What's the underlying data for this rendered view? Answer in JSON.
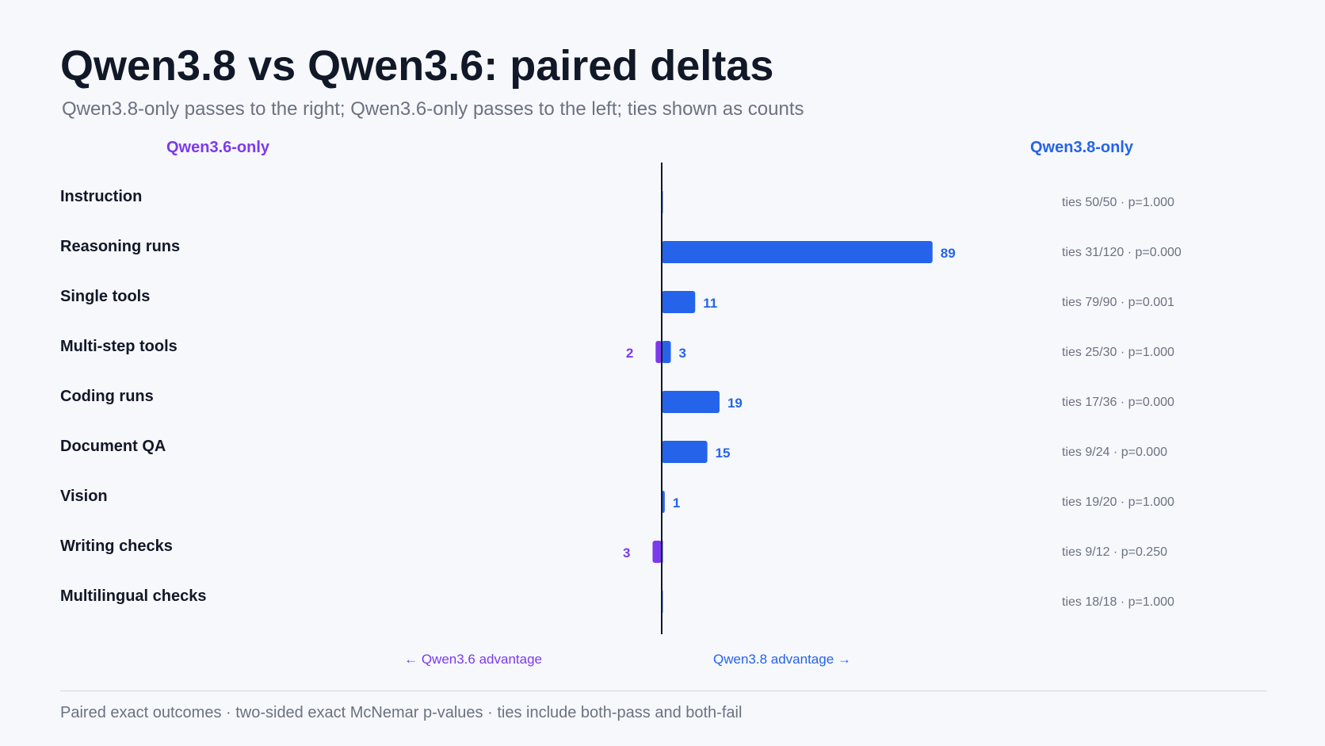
{
  "title": "Qwen3.8 vs Qwen3.6: paired deltas",
  "subtitle": "Qwen3.8-only passes to the right; Qwen3.6-only passes to the left; ties shown as counts",
  "left_header": "Qwen3.6-only",
  "right_header": "Qwen3.8-only",
  "left_axis_label": "← Qwen3.6 advantage",
  "right_axis_label": "Qwen3.8 advantage →",
  "footnote": "Paired exact outcomes · two-sided exact McNemar p-values · ties include both-pass and both-fail",
  "colors": {
    "qwen38": "#2563eb",
    "qwen36": "#7c3aed",
    "text": "#111827",
    "muted": "#6b7280"
  },
  "chart_data": {
    "type": "bar",
    "orientation": "horizontal-diverging",
    "categories": [
      "Instruction",
      "Reasoning runs",
      "Single tools",
      "Multi-step tools",
      "Coding runs",
      "Document QA",
      "Vision",
      "Writing checks",
      "Multilingual checks"
    ],
    "series": [
      {
        "name": "Qwen3.8-only",
        "direction": "right",
        "values": [
          0,
          89,
          11,
          3,
          19,
          15,
          1,
          0,
          0
        ]
      },
      {
        "name": "Qwen3.6-only",
        "direction": "left",
        "values": [
          0,
          0,
          0,
          2,
          0,
          0,
          0,
          3,
          0
        ]
      }
    ],
    "annotations": [
      "ties 50/50 · p=1.000",
      "ties 31/120 · p=0.000",
      "ties 79/90 · p=0.001",
      "ties 25/30 · p=1.000",
      "ties 17/36 · p=0.000",
      "ties 9/24 · p=0.000",
      "ties 19/20 · p=1.000",
      "ties 9/12 · p=0.250",
      "ties 18/18 · p=1.000"
    ]
  }
}
